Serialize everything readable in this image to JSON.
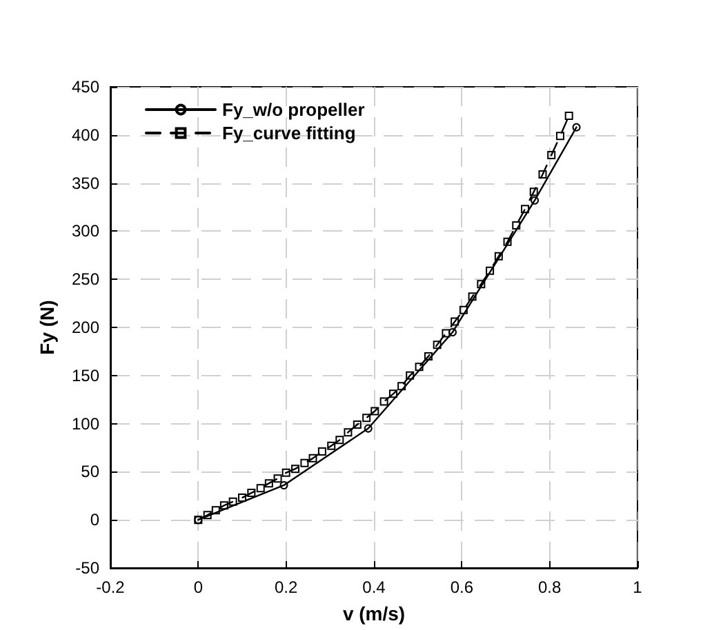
{
  "chart_data": {
    "type": "line",
    "xlabel": "v (m/s)",
    "ylabel": "Fy (N)",
    "xlim": [
      -0.2,
      1
    ],
    "xticks": [
      -0.2,
      0,
      0.2,
      0.4,
      0.6,
      0.8,
      1
    ],
    "ylim": [
      -50,
      450
    ],
    "yticks": [
      -50,
      0,
      50,
      100,
      150,
      200,
      250,
      300,
      350,
      400,
      450
    ],
    "grid": true,
    "legend": "top left",
    "series": [
      {
        "name": "Fy_w/o propeller",
        "color": "#000000",
        "marker": "circle",
        "line_style": "solid",
        "x": [
          0,
          0.195,
          0.387,
          0.579,
          0.766,
          0.861
        ],
        "values": [
          0,
          36,
          95,
          195,
          332,
          408
        ]
      },
      {
        "name": "Fy_curve fitting",
        "color": "#000000",
        "marker": "square",
        "line_style": "dashed",
        "x": [
          0,
          0.021,
          0.04,
          0.059,
          0.079,
          0.1,
          0.121,
          0.142,
          0.161,
          0.181,
          0.2,
          0.221,
          0.242,
          0.261,
          0.282,
          0.303,
          0.322,
          0.341,
          0.362,
          0.383,
          0.402,
          0.423,
          0.444,
          0.463,
          0.482,
          0.503,
          0.524,
          0.544,
          0.564,
          0.584,
          0.604,
          0.624,
          0.644,
          0.664,
          0.684,
          0.704,
          0.724,
          0.744,
          0.764,
          0.784,
          0.804,
          0.824,
          0.844
        ],
        "values": [
          0,
          5,
          10,
          15,
          19,
          23,
          28,
          33,
          38,
          43,
          49,
          53,
          59,
          64,
          71,
          77,
          83,
          91,
          99,
          106,
          113,
          123,
          131,
          139,
          150,
          159,
          170,
          182,
          194,
          206,
          218,
          232,
          245,
          259,
          274,
          289,
          306,
          323,
          341,
          359,
          379,
          399,
          420
        ]
      }
    ]
  }
}
